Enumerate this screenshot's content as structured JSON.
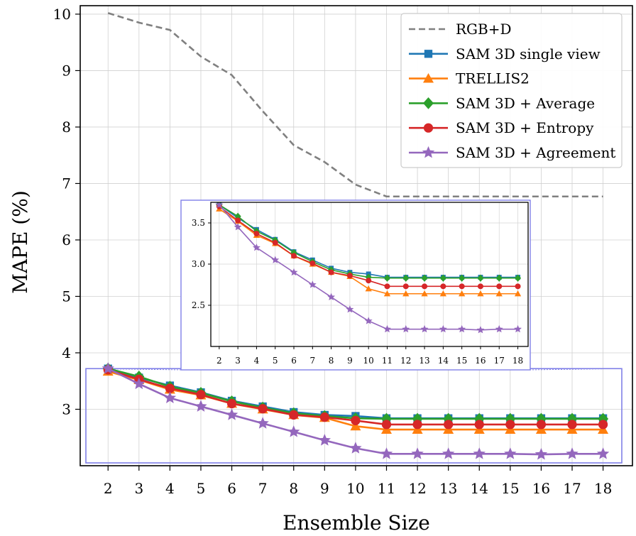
{
  "chart_data": {
    "type": "line",
    "title": "",
    "xlabel": "Ensemble Size",
    "ylabel": "MAPE (%)",
    "x": [
      2,
      3,
      4,
      5,
      6,
      7,
      8,
      9,
      10,
      11,
      12,
      13,
      14,
      15,
      16,
      17,
      18
    ],
    "xlim": [
      1.1,
      18.95
    ],
    "ylim": [
      2.0,
      10.15
    ],
    "yticks": [
      3,
      4,
      5,
      6,
      7,
      8,
      9,
      10
    ],
    "grid": true,
    "legend": "top-right",
    "series": [
      {
        "name": "RGB+D",
        "color": "#808080",
        "marker": "none",
        "dashed": true,
        "x": [
          2,
          3,
          4,
          5,
          6,
          7,
          8,
          9,
          10,
          11,
          12,
          13,
          14,
          15,
          16,
          17,
          18
        ],
        "values": [
          10.02,
          9.85,
          9.72,
          9.25,
          8.92,
          8.28,
          7.68,
          7.38,
          6.98,
          6.77,
          6.77,
          6.77,
          6.77,
          6.77,
          6.77,
          6.77,
          6.77
        ]
      },
      {
        "name": "SAM 3D single view",
        "color": "#1f77b4",
        "marker": "square",
        "dashed": false,
        "x": [
          2,
          3,
          4,
          5,
          6,
          7,
          8,
          9,
          10,
          11,
          12,
          13,
          14,
          15,
          16,
          17,
          18
        ],
        "values": [
          3.72,
          3.56,
          3.42,
          3.3,
          3.15,
          3.05,
          2.95,
          2.9,
          2.88,
          2.84,
          2.84,
          2.84,
          2.84,
          2.84,
          2.84,
          2.84,
          2.84
        ]
      },
      {
        "name": "TRELLIS2",
        "color": "#ff7f0e",
        "marker": "triangle",
        "dashed": false,
        "x": [
          2,
          3,
          4,
          5,
          6,
          7,
          8,
          9,
          10,
          11,
          12,
          13,
          14,
          15,
          16,
          17,
          18
        ],
        "values": [
          3.67,
          3.52,
          3.35,
          3.25,
          3.1,
          3.0,
          2.9,
          2.85,
          2.7,
          2.64,
          2.64,
          2.64,
          2.64,
          2.64,
          2.64,
          2.64,
          2.64
        ]
      },
      {
        "name": "SAM 3D + Average",
        "color": "#2ca02c",
        "marker": "diamond",
        "dashed": false,
        "x": [
          2,
          3,
          4,
          5,
          6,
          7,
          8,
          9,
          10,
          11,
          12,
          13,
          14,
          15,
          16,
          17,
          18
        ],
        "values": [
          3.72,
          3.58,
          3.4,
          3.29,
          3.14,
          3.03,
          2.93,
          2.88,
          2.84,
          2.83,
          2.83,
          2.83,
          2.83,
          2.83,
          2.83,
          2.83,
          2.83
        ]
      },
      {
        "name": "SAM 3D + Entropy",
        "color": "#d62728",
        "marker": "circle",
        "dashed": false,
        "x": [
          2,
          3,
          4,
          5,
          6,
          7,
          8,
          9,
          10,
          11,
          12,
          13,
          14,
          15,
          16,
          17,
          18
        ],
        "values": [
          3.7,
          3.53,
          3.37,
          3.26,
          3.1,
          3.01,
          2.9,
          2.86,
          2.8,
          2.73,
          2.73,
          2.73,
          2.73,
          2.73,
          2.73,
          2.73,
          2.73
        ]
      },
      {
        "name": "SAM 3D + Agreement",
        "color": "#9467bd",
        "marker": "star",
        "dashed": false,
        "x": [
          2,
          3,
          4,
          5,
          6,
          7,
          8,
          9,
          10,
          11,
          12,
          13,
          14,
          15,
          16,
          17,
          18
        ],
        "values": [
          3.72,
          3.45,
          3.2,
          3.05,
          2.9,
          2.75,
          2.6,
          2.45,
          2.31,
          2.21,
          2.21,
          2.21,
          2.21,
          2.21,
          2.2,
          2.21,
          2.21
        ]
      }
    ],
    "inset": {
      "xlim": [
        1.55,
        18.55
      ],
      "ylim": [
        2.0,
        3.75
      ],
      "yticks": [
        2.5,
        3.0,
        3.5
      ],
      "ytick_labels": [
        "2.5",
        "3.0",
        "3.5"
      ],
      "zoom_box_ylim": [
        2.05,
        3.72
      ],
      "zoom_box_xlim": [
        1.1,
        18.95
      ]
    }
  }
}
